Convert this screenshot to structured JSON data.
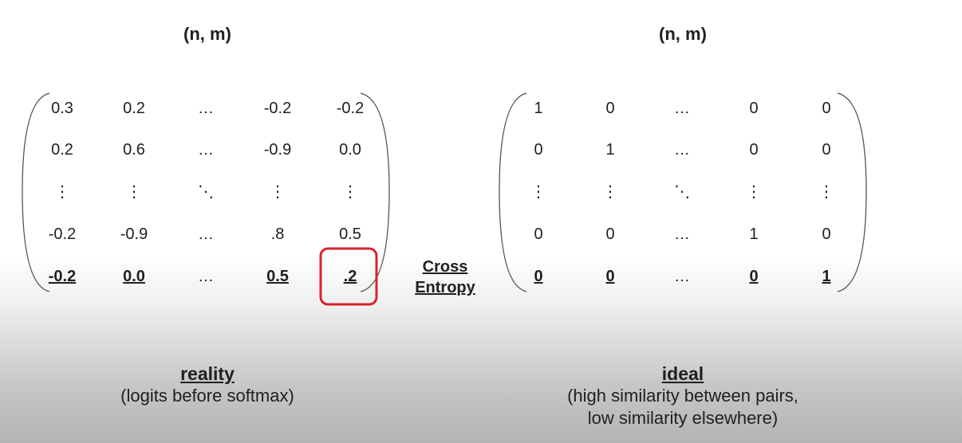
{
  "left": {
    "title": "(n, m)",
    "rows": [
      [
        "0.3",
        "0.2",
        "…",
        "-0.2",
        "-0.2"
      ],
      [
        "0.2",
        "0.6",
        "…",
        "-0.9",
        "0.0"
      ],
      [
        "⋮",
        "⋮",
        "⋱",
        "⋮",
        "⋮"
      ],
      [
        "-0.2",
        "-0.9",
        "…",
        ".8",
        "0.5"
      ],
      [
        "-0.2",
        "0.0",
        "…",
        "0.5",
        ".2"
      ]
    ],
    "caption_head": "reality",
    "caption_sub": "(logits before softmax)"
  },
  "right": {
    "title": "(n, m)",
    "rows": [
      [
        "1",
        "0",
        "…",
        "0",
        "0"
      ],
      [
        "0",
        "1",
        "…",
        "0",
        "0"
      ],
      [
        "⋮",
        "⋮",
        "⋱",
        "⋮",
        "⋮"
      ],
      [
        "0",
        "0",
        "…",
        "1",
        "0"
      ],
      [
        "0",
        "0",
        "…",
        "0",
        "1"
      ]
    ],
    "caption_head": "ideal",
    "caption_sub1": "(high similarity between pairs,",
    "caption_sub2": "low similarity elsewhere)"
  },
  "middle": {
    "line1": "Cross",
    "line2": "Entropy"
  },
  "highlight_color": "#d9232b"
}
